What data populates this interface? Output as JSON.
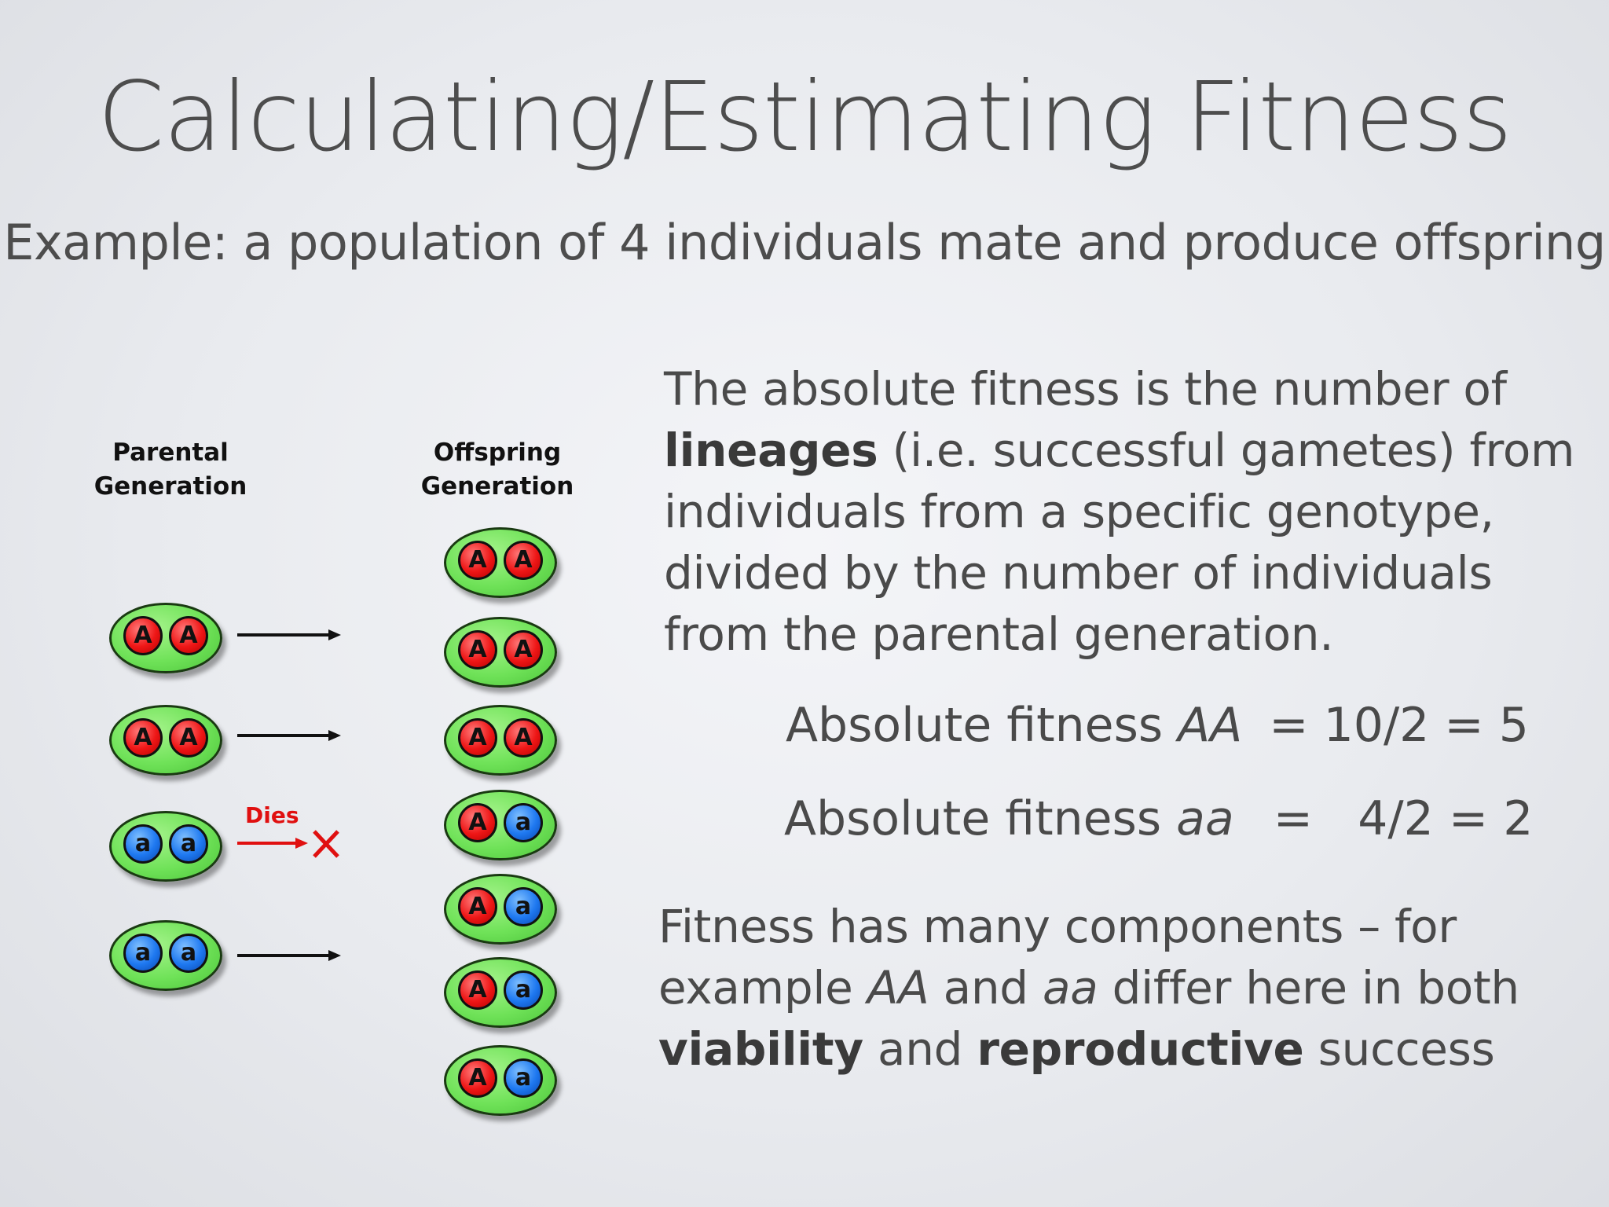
{
  "slide": {
    "title": "Calculating/Estimating Fitness",
    "subtitle": "Example: a population of 4 individuals mate and produce offspring"
  },
  "diagram": {
    "parental_label_line1": "Parental",
    "parental_label_line2": "Generation",
    "offspring_label_line1": "Offspring",
    "offspring_label_line2": "Generation",
    "dies_label": "Dies",
    "parents": [
      {
        "a1": "A",
        "a2": "A"
      },
      {
        "a1": "A",
        "a2": "A"
      },
      {
        "a1": "a",
        "a2": "a"
      },
      {
        "a1": "a",
        "a2": "a"
      }
    ],
    "offspring": [
      {
        "a1": "A",
        "a2": "A"
      },
      {
        "a1": "A",
        "a2": "A"
      },
      {
        "a1": "A",
        "a2": "A"
      },
      {
        "a1": "A",
        "a2": "a"
      },
      {
        "a1": "A",
        "a2": "a"
      },
      {
        "a1": "A",
        "a2": "a"
      },
      {
        "a1": "A",
        "a2": "a"
      }
    ],
    "colors": {
      "dominant_allele": "#ee1616",
      "recessive_allele": "#1e78f0",
      "cell": "#6fe258",
      "dies": "#e01010"
    }
  },
  "text": {
    "para1_t1": "The absolute fitness is the number of ",
    "para1_b1": "lineages",
    "para1_t2": " (i.e. successful gametes) from individuals from a specific genotype, divided by the number of individuals from the parental generation.",
    "eq1_label": "Absolute fitness ",
    "eq1_gen": "AA",
    "eq1_rhs": "= 10/2 = 5",
    "eq2_label": "Absolute fitness ",
    "eq2_gen": "aa",
    "eq2_rhs": "=   4/2 = 2",
    "para2_t1": "Fitness has many components – for example ",
    "para2_i1": "AA",
    "para2_t2": " and ",
    "para2_i2": "aa",
    "para2_t3": " differ here in both ",
    "para2_b1": "viability",
    "para2_t4": " and ",
    "para2_b2": "reproductive",
    "para2_t5": " success"
  }
}
